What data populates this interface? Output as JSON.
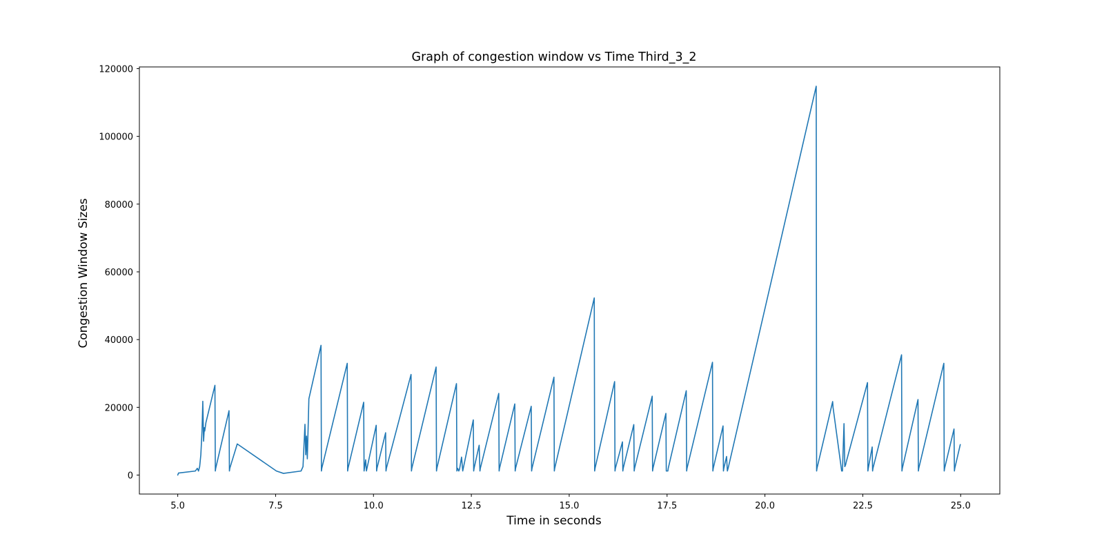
{
  "chart_data": {
    "type": "line",
    "title": "Graph of congestion window vs Time Third_3_2",
    "xlabel": "Time in seconds",
    "ylabel": "Congestion Window Sizes",
    "xlim": [
      4.02,
      26.0
    ],
    "ylim": [
      -5600,
      120500
    ],
    "xticks": [
      5.0,
      7.5,
      10.0,
      12.5,
      15.0,
      17.5,
      20.0,
      22.5,
      25.0
    ],
    "xtick_labels": [
      "5.0",
      "7.5",
      "10.0",
      "12.5",
      "15.0",
      "17.5",
      "20.0",
      "22.5",
      "25.0"
    ],
    "yticks": [
      0,
      20000,
      40000,
      60000,
      80000,
      100000,
      120000
    ],
    "ytick_labels": [
      "0",
      "20000",
      "40000",
      "60000",
      "80000",
      "100000",
      "120000"
    ],
    "grid": false,
    "line_color": "#1f77b4",
    "series": [
      {
        "x": [
          5.0,
          5.02,
          5.45,
          5.5,
          5.53,
          5.56,
          5.59,
          5.62,
          5.64,
          5.66,
          5.68,
          5.69,
          5.72,
          5.95,
          5.96,
          5.97,
          6.31,
          6.32,
          6.33,
          6.52,
          7.52,
          7.7,
          8.15,
          8.2,
          8.25,
          8.27,
          8.29,
          8.31,
          8.35,
          8.36,
          8.66,
          8.67,
          8.68,
          9.33,
          9.34,
          9.35,
          9.75,
          9.76,
          9.77,
          9.8,
          9.82,
          10.07,
          10.08,
          10.09,
          10.31,
          10.32,
          10.33,
          10.96,
          10.97,
          10.98,
          11.6,
          11.61,
          11.62,
          12.12,
          12.13,
          12.15,
          12.18,
          12.2,
          12.25,
          12.28,
          12.55,
          12.56,
          12.57,
          12.7,
          12.72,
          12.73,
          13.2,
          13.21,
          13.22,
          13.61,
          13.62,
          13.63,
          14.03,
          14.04,
          14.05,
          14.61,
          14.62,
          14.63,
          15.64,
          15.65,
          15.66,
          16.16,
          16.17,
          16.18,
          16.36,
          16.37,
          16.38,
          16.65,
          16.66,
          16.67,
          17.12,
          17.13,
          17.14,
          17.47,
          17.48,
          17.52,
          17.53,
          17.99,
          18.0,
          18.01,
          18.66,
          18.67,
          18.68,
          18.93,
          18.94,
          18.95,
          19.02,
          19.04,
          19.06,
          21.31,
          21.32,
          21.33,
          21.73,
          21.74,
          21.96,
          21.98,
          22.02,
          22.04,
          22.06,
          22.08,
          22.62,
          22.63,
          22.64,
          22.74,
          22.75,
          22.76,
          23.49,
          23.5,
          23.51,
          23.91,
          23.92,
          23.93,
          24.57,
          24.58,
          24.59,
          24.83,
          24.84,
          24.85,
          24.99
        ],
        "y": [
          0,
          600,
          1200,
          2000,
          1200,
          2500,
          6000,
          13000,
          21800,
          10000,
          14000,
          13000,
          15500,
          26500,
          1200,
          2000,
          19000,
          1200,
          2000,
          9200,
          1200,
          500,
          1200,
          2500,
          15000,
          6000,
          11500,
          4800,
          22500,
          23000,
          38300,
          1200,
          2000,
          33000,
          1200,
          2000,
          21500,
          1200,
          2000,
          4500,
          1200,
          14700,
          1200,
          2000,
          12500,
          1200,
          2000,
          29700,
          1200,
          2000,
          31900,
          1200,
          2000,
          27000,
          1200,
          2000,
          1200,
          1800,
          5300,
          1200,
          16300,
          1200,
          2000,
          8800,
          1200,
          2000,
          24100,
          1200,
          2000,
          21000,
          1200,
          2000,
          20300,
          1200,
          2000,
          28900,
          1200,
          2000,
          52300,
          1200,
          2000,
          27600,
          1200,
          2000,
          9800,
          1200,
          2000,
          14900,
          1200,
          2000,
          23300,
          1200,
          2000,
          18200,
          1200,
          1200,
          2000,
          24900,
          1200,
          2000,
          33300,
          1200,
          2000,
          14500,
          1200,
          2000,
          5500,
          1200,
          2000,
          114800,
          1200,
          2000,
          21700,
          20000,
          1200,
          1200,
          15200,
          2500,
          3000,
          4000,
          27300,
          1200,
          2000,
          8300,
          1200,
          2000,
          35500,
          1200,
          2000,
          22300,
          1200,
          2000,
          33000,
          1200,
          2000,
          13600,
          1200,
          2000,
          9000
        ]
      }
    ]
  }
}
